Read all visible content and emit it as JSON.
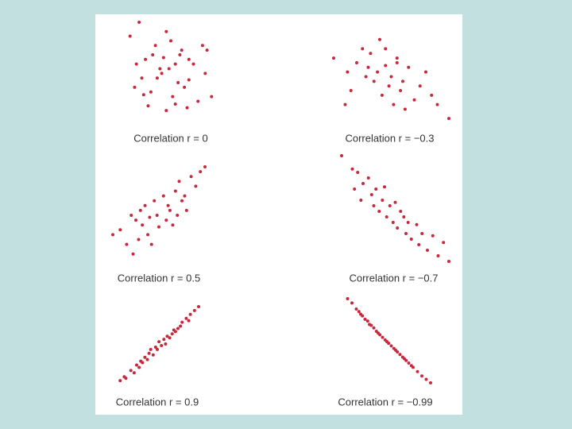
{
  "chart_data": [
    {
      "type": "scatter",
      "title": "Correlation r = 0",
      "color": "#c8283c",
      "xlim": [
        0,
        100
      ],
      "ylim": [
        0,
        100
      ],
      "x": [
        15,
        45,
        62,
        5,
        70,
        85,
        55,
        90,
        30,
        48,
        35,
        22,
        40,
        58,
        75,
        10,
        28,
        52,
        65,
        80,
        18,
        38,
        60,
        95,
        25,
        45,
        70,
        12,
        50,
        33,
        42,
        88,
        20,
        68,
        55
      ],
      "y": [
        100,
        90,
        70,
        85,
        60,
        75,
        55,
        70,
        65,
        50,
        40,
        60,
        45,
        35,
        55,
        30,
        25,
        20,
        30,
        15,
        40,
        50,
        65,
        20,
        10,
        5,
        38,
        55,
        80,
        75,
        62,
        45,
        22,
        8,
        12
      ]
    },
    {
      "type": "scatter",
      "title": "Correlation r = −0.3",
      "color": "#c8283c",
      "xlim": [
        0,
        100
      ],
      "ylim": [
        0,
        100
      ],
      "x": [
        0,
        12,
        15,
        20,
        25,
        28,
        30,
        32,
        35,
        38,
        40,
        42,
        45,
        48,
        50,
        52,
        55,
        58,
        60,
        62,
        65,
        70,
        75,
        80,
        85,
        90,
        100,
        10,
        45,
        55
      ],
      "y": [
        70,
        55,
        35,
        65,
        80,
        50,
        60,
        75,
        45,
        55,
        90,
        30,
        62,
        40,
        50,
        20,
        70,
        35,
        45,
        15,
        60,
        25,
        40,
        55,
        30,
        20,
        5,
        20,
        80,
        65
      ]
    },
    {
      "type": "scatter",
      "title": "Correlation r = 0.5",
      "color": "#c8283c",
      "xlim": [
        0,
        100
      ],
      "ylim": [
        0,
        100
      ],
      "x": [
        0,
        8,
        15,
        20,
        22,
        25,
        28,
        30,
        32,
        35,
        38,
        40,
        42,
        45,
        48,
        50,
        55,
        58,
        60,
        62,
        65,
        68,
        70,
        72,
        75,
        78,
        80,
        85,
        90,
        95,
        100
      ],
      "y": [
        30,
        35,
        20,
        50,
        10,
        45,
        25,
        55,
        40,
        60,
        30,
        48,
        20,
        65,
        50,
        38,
        70,
        45,
        60,
        55,
        40,
        75,
        50,
        85,
        65,
        70,
        55,
        90,
        80,
        95,
        100
      ]
    },
    {
      "type": "scatter",
      "title": "Correlation r = −0.7",
      "color": "#c8283c",
      "xlim": [
        0,
        100
      ],
      "ylim": [
        0,
        100
      ],
      "x": [
        0,
        10,
        12,
        15,
        18,
        20,
        25,
        28,
        30,
        32,
        35,
        38,
        40,
        42,
        45,
        48,
        50,
        52,
        55,
        58,
        60,
        62,
        65,
        70,
        72,
        75,
        80,
        85,
        90,
        95,
        100
      ],
      "y": [
        100,
        88,
        70,
        85,
        60,
        75,
        80,
        65,
        55,
        70,
        50,
        60,
        72,
        45,
        55,
        40,
        58,
        35,
        50,
        45,
        30,
        40,
        25,
        38,
        20,
        30,
        15,
        28,
        10,
        22,
        5
      ]
    },
    {
      "type": "scatter",
      "title": "Correlation r = 0.9",
      "color": "#c8283c",
      "xlim": [
        0,
        100
      ],
      "ylim": [
        0,
        100
      ],
      "x": [
        5,
        10,
        12,
        18,
        22,
        25,
        28,
        30,
        32,
        35,
        38,
        40,
        42,
        45,
        48,
        50,
        52,
        55,
        58,
        60,
        62,
        65,
        68,
        70,
        72,
        75,
        78,
        80,
        85,
        88,
        90,
        95,
        100
      ],
      "y": [
        5,
        10,
        8,
        18,
        15,
        25,
        22,
        30,
        28,
        35,
        32,
        40,
        45,
        38,
        48,
        45,
        55,
        50,
        58,
        52,
        62,
        60,
        65,
        70,
        68,
        72,
        75,
        80,
        85,
        82,
        90,
        95,
        100
      ]
    },
    {
      "type": "scatter",
      "title": "Correlation r = −0.99",
      "color": "#c8283c",
      "xlim": [
        0,
        100
      ],
      "ylim": [
        0,
        100
      ],
      "x": [
        5,
        10,
        15,
        18,
        20,
        22,
        25,
        28,
        30,
        32,
        35,
        38,
        40,
        42,
        45,
        48,
        50,
        52,
        55,
        58,
        60,
        62,
        65,
        68,
        70,
        72,
        75,
        78,
        80,
        85,
        90,
        95,
        100
      ],
      "y": [
        100,
        95,
        88,
        85,
        82,
        80,
        76,
        74,
        70,
        69,
        66,
        62,
        60,
        58,
        55,
        52,
        50,
        48,
        45,
        42,
        40,
        38,
        35,
        32,
        30,
        28,
        25,
        22,
        20,
        15,
        10,
        6,
        2
      ]
    }
  ]
}
